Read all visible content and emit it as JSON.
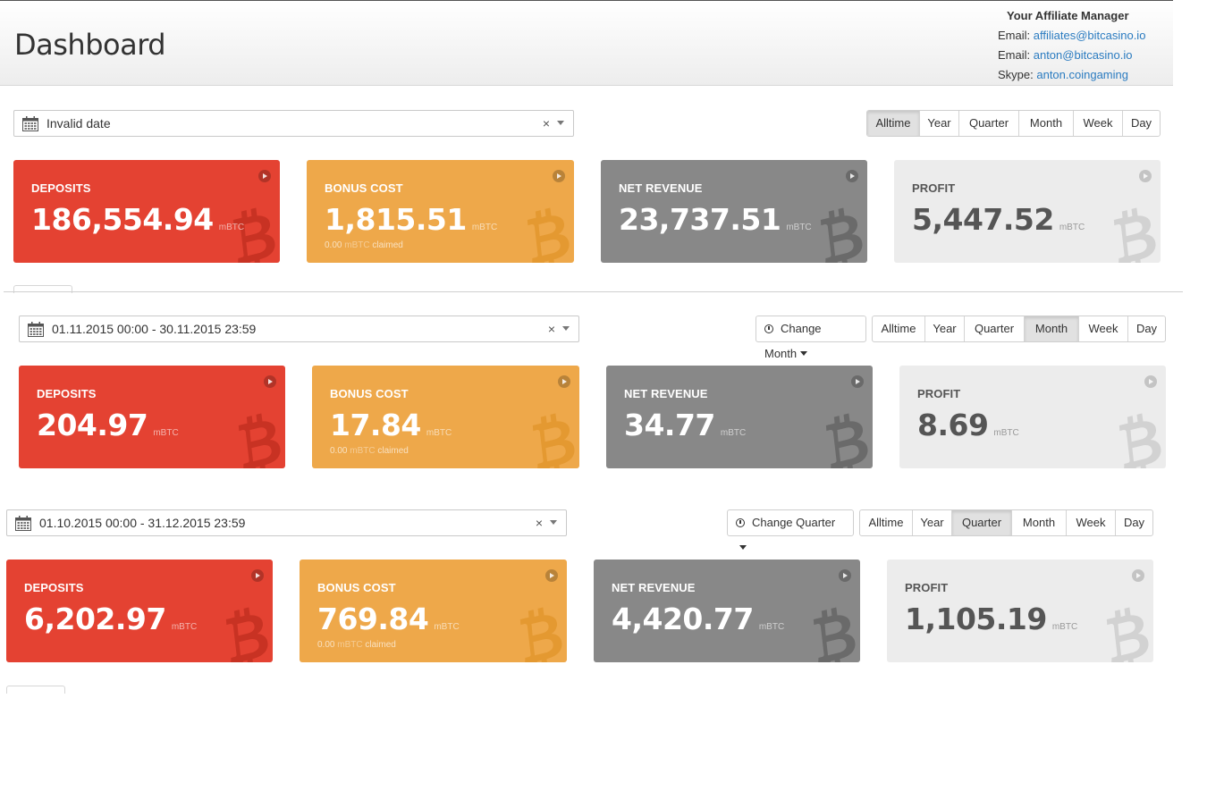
{
  "header": {
    "title": "Dashboard",
    "manager": {
      "title": "Your Affiliate Manager",
      "email1_label": "Email: ",
      "email1": "affiliates@bitcasino.io",
      "email2_label": "Email: ",
      "email2": "anton@bitcasino.io",
      "skype_label": "Skype: ",
      "skype": "anton.coingaming"
    }
  },
  "colors": {
    "deposits": "#e44232",
    "bonus": "#eea84a",
    "revenue": "#888888",
    "profit": "#ececec",
    "link": "#2a7bc0"
  },
  "panels": [
    {
      "date": "Invalid date",
      "change_label": "",
      "periods": [
        "Alltime",
        "Year",
        "Quarter",
        "Month",
        "Week",
        "Day"
      ],
      "active_period": "Alltime",
      "cards": {
        "deposits": {
          "label": "DEPOSITS",
          "value": "186,554.94",
          "unit": "mBTC"
        },
        "bonus": {
          "label": "BONUS COST",
          "value": "1,815.51",
          "unit": "mBTC",
          "claimed_value": "0.00",
          "claimed_unit": "mBTC",
          "claimed_text": "claimed"
        },
        "revenue": {
          "label": "NET REVENUE",
          "value": "23,737.51",
          "unit": "mBTC"
        },
        "profit": {
          "label": "PROFIT",
          "value": "5,447.52",
          "unit": "mBTC"
        }
      }
    },
    {
      "date": "01.11.2015 00:00 - 30.11.2015 23:59",
      "change_label": "Change Month",
      "periods": [
        "Alltime",
        "Year",
        "Quarter",
        "Month",
        "Week",
        "Day"
      ],
      "active_period": "Month",
      "cards": {
        "deposits": {
          "label": "DEPOSITS",
          "value": "204.97",
          "unit": "mBTC"
        },
        "bonus": {
          "label": "BONUS COST",
          "value": "17.84",
          "unit": "mBTC",
          "claimed_value": "0.00",
          "claimed_unit": "mBTC",
          "claimed_text": "claimed"
        },
        "revenue": {
          "label": "NET REVENUE",
          "value": "34.77",
          "unit": "mBTC"
        },
        "profit": {
          "label": "PROFIT",
          "value": "8.69",
          "unit": "mBTC"
        }
      }
    },
    {
      "date": "01.10.2015 00:00 - 31.12.2015 23:59",
      "change_label": "Change Quarter",
      "periods": [
        "Alltime",
        "Year",
        "Quarter",
        "Month",
        "Week",
        "Day"
      ],
      "active_period": "Quarter",
      "cards": {
        "deposits": {
          "label": "DEPOSITS",
          "value": "6,202.97",
          "unit": "mBTC"
        },
        "bonus": {
          "label": "BONUS COST",
          "value": "769.84",
          "unit": "mBTC",
          "claimed_value": "0.00",
          "claimed_unit": "mBTC",
          "claimed_text": "claimed"
        },
        "revenue": {
          "label": "NET REVENUE",
          "value": "4,420.77",
          "unit": "mBTC"
        },
        "profit": {
          "label": "PROFIT",
          "value": "1,105.19",
          "unit": "mBTC"
        }
      }
    }
  ]
}
